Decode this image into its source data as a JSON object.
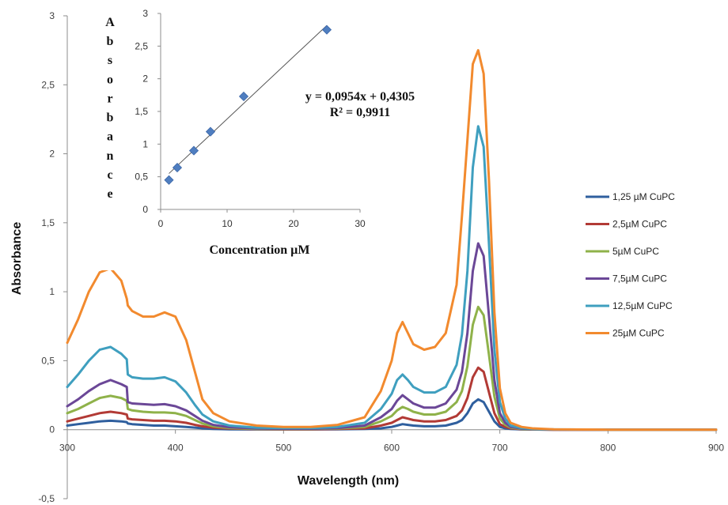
{
  "chart_data": [
    {
      "type": "line",
      "xlabel": "Wavelength (nm)",
      "ylabel": "Absorbance",
      "xlim": [
        300,
        900
      ],
      "ylim": [
        -0.5,
        3
      ],
      "x_ticks": [
        "300",
        "400",
        "500",
        "600",
        "700",
        "800",
        "900"
      ],
      "y_ticks": [
        "-0,5",
        "0",
        "0,5",
        "1",
        "1,5",
        "2",
        "2,5",
        "3"
      ],
      "legend_position": "right",
      "x": [
        300,
        310,
        320,
        330,
        340,
        350,
        355,
        356,
        360,
        370,
        380,
        390,
        400,
        410,
        418,
        425,
        435,
        450,
        475,
        500,
        525,
        550,
        575,
        590,
        600,
        605,
        610,
        615,
        620,
        630,
        640,
        650,
        660,
        665,
        670,
        675,
        680,
        685,
        690,
        695,
        700,
        705,
        710,
        720,
        730,
        750,
        800,
        850,
        900
      ],
      "series": [
        {
          "name": "1,25 µM CuPC",
          "color": "#2f5f9e",
          "values": [
            0.03,
            0.04,
            0.05,
            0.06,
            0.065,
            0.06,
            0.055,
            0.045,
            0.04,
            0.035,
            0.03,
            0.03,
            0.025,
            0.02,
            0.015,
            0.01,
            0.005,
            0.003,
            0.002,
            0.002,
            0.002,
            0.003,
            0.005,
            0.01,
            0.02,
            0.03,
            0.04,
            0.035,
            0.03,
            0.025,
            0.025,
            0.03,
            0.05,
            0.07,
            0.12,
            0.19,
            0.22,
            0.2,
            0.13,
            0.06,
            0.02,
            0.01,
            0.005,
            0.002,
            0.001,
            0,
            0,
            0,
            0
          ]
        },
        {
          "name": "2,5µM CuPC",
          "color": "#b23a35",
          "values": [
            0.06,
            0.08,
            0.1,
            0.12,
            0.13,
            0.12,
            0.11,
            0.08,
            0.075,
            0.07,
            0.065,
            0.065,
            0.06,
            0.05,
            0.035,
            0.025,
            0.015,
            0.008,
            0.004,
            0.003,
            0.003,
            0.005,
            0.01,
            0.03,
            0.05,
            0.07,
            0.09,
            0.08,
            0.07,
            0.06,
            0.06,
            0.07,
            0.1,
            0.14,
            0.23,
            0.38,
            0.45,
            0.42,
            0.27,
            0.12,
            0.04,
            0.02,
            0.01,
            0.004,
            0.002,
            0,
            0,
            0,
            0
          ]
        },
        {
          "name": "5µM CuPC",
          "color": "#8fb24a",
          "values": [
            0.12,
            0.15,
            0.19,
            0.23,
            0.245,
            0.23,
            0.21,
            0.15,
            0.14,
            0.13,
            0.125,
            0.125,
            0.12,
            0.1,
            0.07,
            0.045,
            0.025,
            0.012,
            0.006,
            0.005,
            0.005,
            0.008,
            0.02,
            0.06,
            0.1,
            0.14,
            0.165,
            0.15,
            0.13,
            0.11,
            0.11,
            0.13,
            0.2,
            0.28,
            0.46,
            0.76,
            0.89,
            0.83,
            0.54,
            0.24,
            0.08,
            0.035,
            0.015,
            0.006,
            0.003,
            0.001,
            0,
            0,
            0
          ]
        },
        {
          "name": "7,5µM CuPC",
          "color": "#6b4797",
          "values": [
            0.17,
            0.22,
            0.28,
            0.33,
            0.36,
            0.33,
            0.31,
            0.2,
            0.19,
            0.185,
            0.18,
            0.185,
            0.17,
            0.14,
            0.1,
            0.065,
            0.035,
            0.018,
            0.009,
            0.007,
            0.007,
            0.012,
            0.03,
            0.09,
            0.15,
            0.21,
            0.25,
            0.22,
            0.19,
            0.16,
            0.16,
            0.19,
            0.29,
            0.42,
            0.7,
            1.15,
            1.35,
            1.26,
            0.82,
            0.36,
            0.12,
            0.05,
            0.02,
            0.008,
            0.004,
            0.001,
            0,
            0,
            0
          ]
        },
        {
          "name": "12,5µM CuPC",
          "color": "#3f9fbf",
          "values": [
            0.31,
            0.4,
            0.5,
            0.58,
            0.6,
            0.55,
            0.51,
            0.4,
            0.38,
            0.37,
            0.37,
            0.38,
            0.35,
            0.27,
            0.18,
            0.11,
            0.06,
            0.03,
            0.015,
            0.011,
            0.011,
            0.02,
            0.05,
            0.15,
            0.26,
            0.36,
            0.4,
            0.36,
            0.31,
            0.27,
            0.27,
            0.31,
            0.47,
            0.69,
            1.15,
            1.9,
            2.2,
            2.05,
            1.34,
            0.58,
            0.2,
            0.08,
            0.03,
            0.012,
            0.006,
            0.002,
            0,
            0,
            0
          ]
        },
        {
          "name": "25µM CuPC",
          "color": "#f28a2e",
          "values": [
            0.63,
            0.8,
            1.0,
            1.14,
            1.17,
            1.08,
            0.95,
            0.9,
            0.86,
            0.82,
            0.82,
            0.85,
            0.82,
            0.65,
            0.42,
            0.22,
            0.12,
            0.06,
            0.03,
            0.02,
            0.02,
            0.035,
            0.09,
            0.28,
            0.5,
            0.7,
            0.78,
            0.7,
            0.62,
            0.58,
            0.6,
            0.7,
            1.05,
            1.55,
            2.1,
            2.65,
            2.75,
            2.58,
            1.8,
            0.85,
            0.3,
            0.12,
            0.05,
            0.02,
            0.01,
            0.003,
            0,
            0,
            0
          ]
        }
      ]
    },
    {
      "type": "scatter",
      "xlabel": "Concentration  µM",
      "ylabel": "Absorbance",
      "xlim": [
        0,
        30
      ],
      "ylim": [
        0,
        3
      ],
      "x_ticks": [
        "0",
        "10",
        "20",
        "30"
      ],
      "y_ticks": [
        "0",
        "0,5",
        "1",
        "1,5",
        "2",
        "2,5",
        "3"
      ],
      "points": [
        {
          "x": 1.25,
          "y": 0.45
        },
        {
          "x": 2.5,
          "y": 0.64
        },
        {
          "x": 5,
          "y": 0.9
        },
        {
          "x": 7.5,
          "y": 1.19
        },
        {
          "x": 12.5,
          "y": 1.73
        },
        {
          "x": 25,
          "y": 2.75
        }
      ],
      "marker_color": "#4f7ec0",
      "trendline": {
        "slope": 0.0954,
        "intercept": 0.4305,
        "x_range": [
          1.25,
          25
        ]
      },
      "annotations": [
        "y = 0,0954x + 0,4305",
        "R² = 0,9911"
      ]
    }
  ]
}
